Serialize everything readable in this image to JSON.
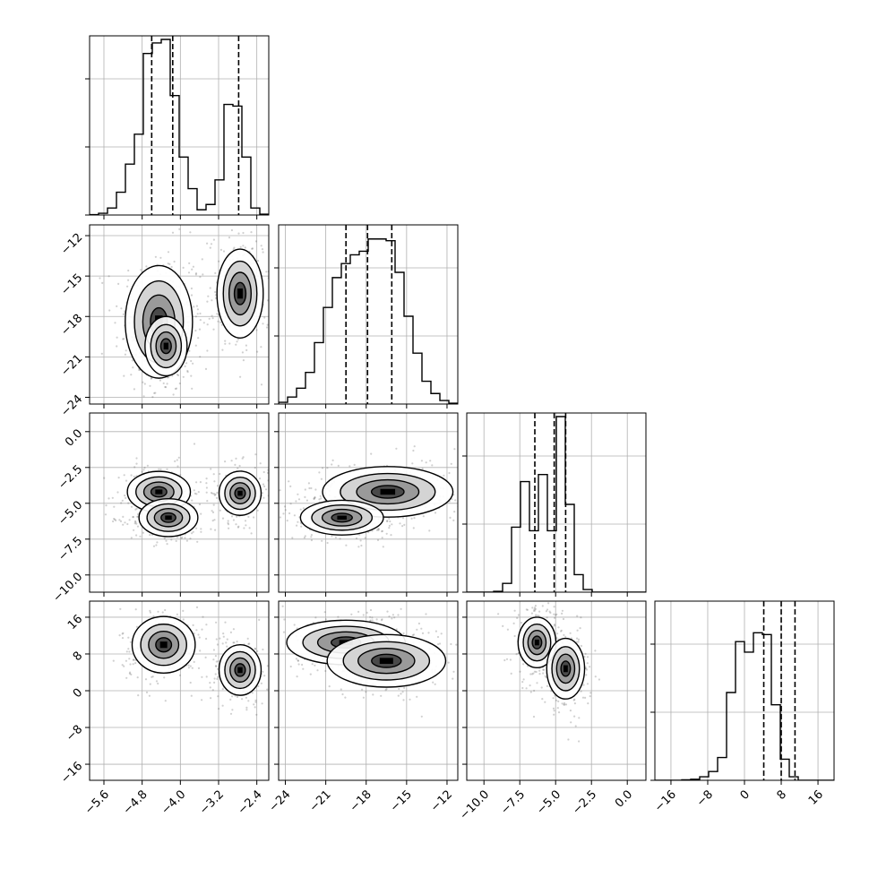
{
  "chart_data": {
    "type": "corner",
    "grid": true,
    "n_params": 4,
    "param_ranges": [
      [
        -5.9,
        -2.15
      ],
      [
        -24.5,
        -11.2
      ],
      [
        -11.2,
        1.3
      ],
      [
        -19.5,
        19.5
      ]
    ],
    "ticks": [
      [
        "−5.6",
        "−4.8",
        "−4.0",
        "−3.2",
        "−2.4"
      ],
      [
        "−24",
        "−21",
        "−18",
        "−15",
        "−12"
      ],
      [
        "−10.0",
        "−7.5",
        "−5.0",
        "−2.5",
        "0.0"
      ],
      [
        "−16",
        "−8",
        "0",
        "8",
        "16"
      ]
    ],
    "tick_values": [
      [
        -5.6,
        -4.8,
        -4.0,
        -3.2,
        -2.4
      ],
      [
        -24,
        -21,
        -18,
        -15,
        -12
      ],
      [
        -10.0,
        -7.5,
        -5.0,
        -2.5,
        0.0
      ],
      [
        -16,
        -8,
        0,
        8,
        16
      ]
    ],
    "quantiles": [
      [
        -4.6,
        -4.16,
        -2.78
      ],
      [
        -19.5,
        -17.9,
        -16.1
      ],
      [
        -6.45,
        -5.1,
        -4.3
      ],
      [
        4.2,
        8.0,
        11.0
      ]
    ],
    "histograms": [
      {
        "x0": -5.9,
        "x1": -2.15,
        "counts": [
          0.002,
          0.01,
          0.04,
          0.13,
          0.29,
          0.46,
          0.92,
          0.98,
          1.0,
          0.68,
          0.33,
          0.15,
          0.03,
          0.06,
          0.2,
          0.63,
          0.62,
          0.33,
          0.04,
          0.005
        ]
      },
      {
        "x0": -24.5,
        "x1": -11.2,
        "counts": [
          0.01,
          0.04,
          0.09,
          0.18,
          0.35,
          0.55,
          0.72,
          0.8,
          0.85,
          0.87,
          0.94,
          0.94,
          0.93,
          0.75,
          0.5,
          0.29,
          0.13,
          0.06,
          0.02,
          0.005
        ]
      },
      {
        "x0": -11.2,
        "x1": 1.3,
        "counts": [
          0.0,
          0.0,
          0.0,
          0.005,
          0.05,
          0.37,
          0.63,
          0.35,
          0.67,
          0.35,
          1.0,
          0.5,
          0.1,
          0.015,
          0.0,
          0.0,
          0.0,
          0.0,
          0.0,
          0.0
        ]
      },
      {
        "x0": -19.5,
        "x1": 19.5,
        "counts": [
          0.0,
          0.0,
          0.0,
          0.003,
          0.006,
          0.02,
          0.05,
          0.13,
          0.5,
          0.79,
          0.73,
          0.84,
          0.83,
          0.43,
          0.12,
          0.02,
          0.0,
          0.0,
          0.0,
          0.0
        ]
      }
    ],
    "peaks_2d": [
      {
        "i": 1,
        "j": 0,
        "blobs": [
          [
            -4.45,
            -18.4,
            0.32,
            1.9,
            1.0
          ],
          [
            -4.3,
            -20.2,
            0.2,
            1.0,
            0.8
          ],
          [
            -2.75,
            -16.3,
            0.22,
            1.5,
            0.9
          ]
        ]
      },
      {
        "i": 2,
        "j": 0,
        "blobs": [
          [
            -4.45,
            -4.2,
            0.3,
            0.65,
            0.8
          ],
          [
            -4.25,
            -6.0,
            0.28,
            0.6,
            1.0
          ],
          [
            -2.75,
            -4.3,
            0.2,
            0.7,
            0.8
          ]
        ]
      },
      {
        "i": 2,
        "j": 1,
        "blobs": [
          [
            -16.4,
            -4.2,
            2.2,
            0.8,
            1.0
          ],
          [
            -19.8,
            -6.0,
            1.4,
            0.55,
            0.8
          ]
        ]
      },
      {
        "i": 3,
        "j": 0,
        "blobs": [
          [
            -4.35,
            10.0,
            0.3,
            2.8,
            1.0
          ],
          [
            -2.75,
            4.5,
            0.2,
            2.5,
            0.85
          ]
        ]
      },
      {
        "i": 3,
        "j": 1,
        "blobs": [
          [
            -19.5,
            10.5,
            2.0,
            2.2,
            1.0
          ],
          [
            -16.5,
            6.5,
            2.0,
            2.6,
            0.9
          ]
        ]
      },
      {
        "i": 3,
        "j": 2,
        "blobs": [
          [
            -6.3,
            10.5,
            0.6,
            2.5,
            0.9
          ],
          [
            -4.3,
            4.8,
            0.6,
            3.0,
            1.0
          ]
        ]
      }
    ]
  }
}
